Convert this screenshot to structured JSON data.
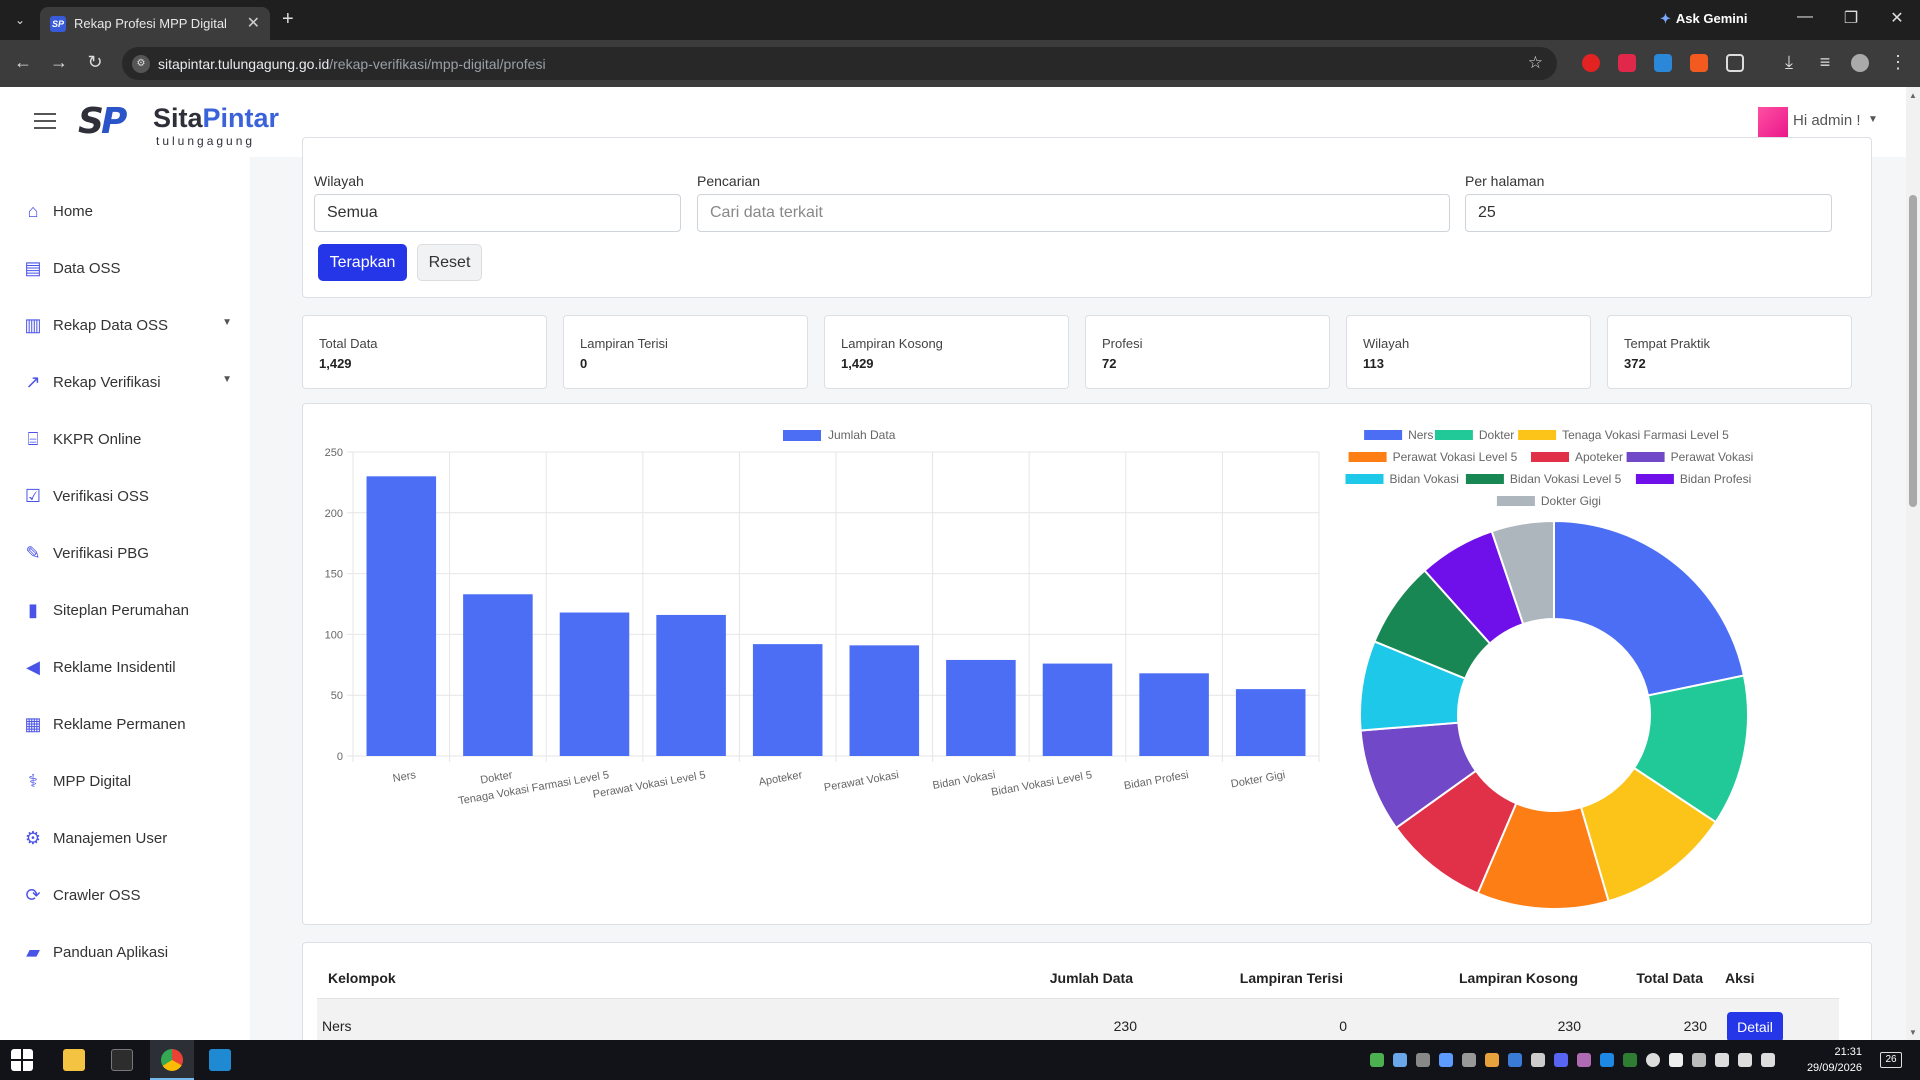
{
  "browser": {
    "tab_title": "Rekap Profesi MPP Digital",
    "ask_gemini": "Ask Gemini",
    "url_host": "sitapintar.tulungagung.go.id",
    "url_path": "/rekap-verifikasi/mpp-digital/profesi"
  },
  "header": {
    "logo_initials": "SP",
    "logo_sita": "Sita",
    "logo_pintar": "Pintar",
    "logo_sub": "tulungagung",
    "user_greeting": "Hi admin !"
  },
  "sidebar": {
    "items": [
      {
        "label": "Home",
        "icon": "home-icon"
      },
      {
        "label": "Data OSS",
        "icon": "inbox-icon"
      },
      {
        "label": "Rekap Data OSS",
        "icon": "bar-chart-icon",
        "has_submenu": true
      },
      {
        "label": "Rekap Verifikasi",
        "icon": "line-chart-icon",
        "has_submenu": true
      },
      {
        "label": "KKPR Online",
        "icon": "bank-icon"
      },
      {
        "label": "Verifikasi OSS",
        "icon": "check-square-icon"
      },
      {
        "label": "Verifikasi PBG",
        "icon": "edit-icon"
      },
      {
        "label": "Siteplan Perumahan",
        "icon": "map-icon"
      },
      {
        "label": "Reklame Insidentil",
        "icon": "bullhorn-icon"
      },
      {
        "label": "Reklame Permanen",
        "icon": "building-icon"
      },
      {
        "label": "MPP Digital",
        "icon": "stethoscope-icon"
      },
      {
        "label": "Manajemen User",
        "icon": "gear-icon"
      },
      {
        "label": "Crawler OSS",
        "icon": "sync-icon"
      },
      {
        "label": "Panduan Aplikasi",
        "icon": "book-icon"
      }
    ]
  },
  "filters": {
    "wilayah_label": "Wilayah",
    "wilayah_value": "Semua",
    "search_label": "Pencarian",
    "search_placeholder": "Cari data terkait",
    "per_page_label": "Per halaman",
    "per_page_value": "25",
    "apply_label": "Terapkan",
    "reset_label": "Reset"
  },
  "stats": [
    {
      "label": "Total Data",
      "value": "1,429"
    },
    {
      "label": "Lampiran Terisi",
      "value": "0"
    },
    {
      "label": "Lampiran Kosong",
      "value": "1,429"
    },
    {
      "label": "Profesi",
      "value": "72"
    },
    {
      "label": "Wilayah",
      "value": "113"
    },
    {
      "label": "Tempat Praktik",
      "value": "372"
    }
  ],
  "chart_data": [
    {
      "type": "bar",
      "legend": [
        "Jumlah Data"
      ],
      "categories": [
        "Ners",
        "Dokter",
        "Tenaga Vokasi Farmasi Level 5",
        "Perawat Vokasi Level 5",
        "Apoteker",
        "Perawat Vokasi",
        "Bidan Vokasi",
        "Bidan Vokasi Level 5",
        "Bidan Profesi",
        "Dokter Gigi"
      ],
      "series": [
        {
          "name": "Jumlah Data",
          "values": [
            230,
            133,
            118,
            116,
            92,
            91,
            79,
            76,
            68,
            55
          ],
          "color": "#4c6ef5"
        }
      ],
      "ylim": [
        0,
        250
      ],
      "yticks": [
        "0",
        "50",
        "100",
        "150",
        "200",
        "250"
      ],
      "grid": true,
      "legend_position": "top"
    },
    {
      "type": "pie",
      "subtype": "doughnut",
      "labels": [
        "Ners",
        "Dokter",
        "Tenaga Vokasi Farmasi Level 5",
        "Perawat Vokasi Level 5",
        "Apoteker",
        "Perawat Vokasi",
        "Bidan Vokasi",
        "Bidan Vokasi Level 5",
        "Bidan Profesi",
        "Dokter Gigi"
      ],
      "values": [
        230,
        133,
        118,
        116,
        92,
        91,
        79,
        76,
        68,
        55
      ],
      "colors": [
        "#4c6ef5",
        "#20c997",
        "#fcc419",
        "#fd7e14",
        "#e03149",
        "#7048c8",
        "#1ec8e8",
        "#198754",
        "#6f10ea",
        "#adb5bd"
      ],
      "legend_position": "top"
    }
  ],
  "table": {
    "headers": [
      "Kelompok",
      "Jumlah Data",
      "Lampiran Terisi",
      "Lampiran Kosong",
      "Total Data",
      "Aksi"
    ],
    "rows": [
      {
        "kelompok": "Ners",
        "jumlah": "230",
        "terisi": "0",
        "kosong": "230",
        "total": "230",
        "action": "Detail"
      }
    ]
  },
  "taskbar": {
    "time": "21:31",
    "date": "29/09/2026",
    "notifications": "26"
  }
}
